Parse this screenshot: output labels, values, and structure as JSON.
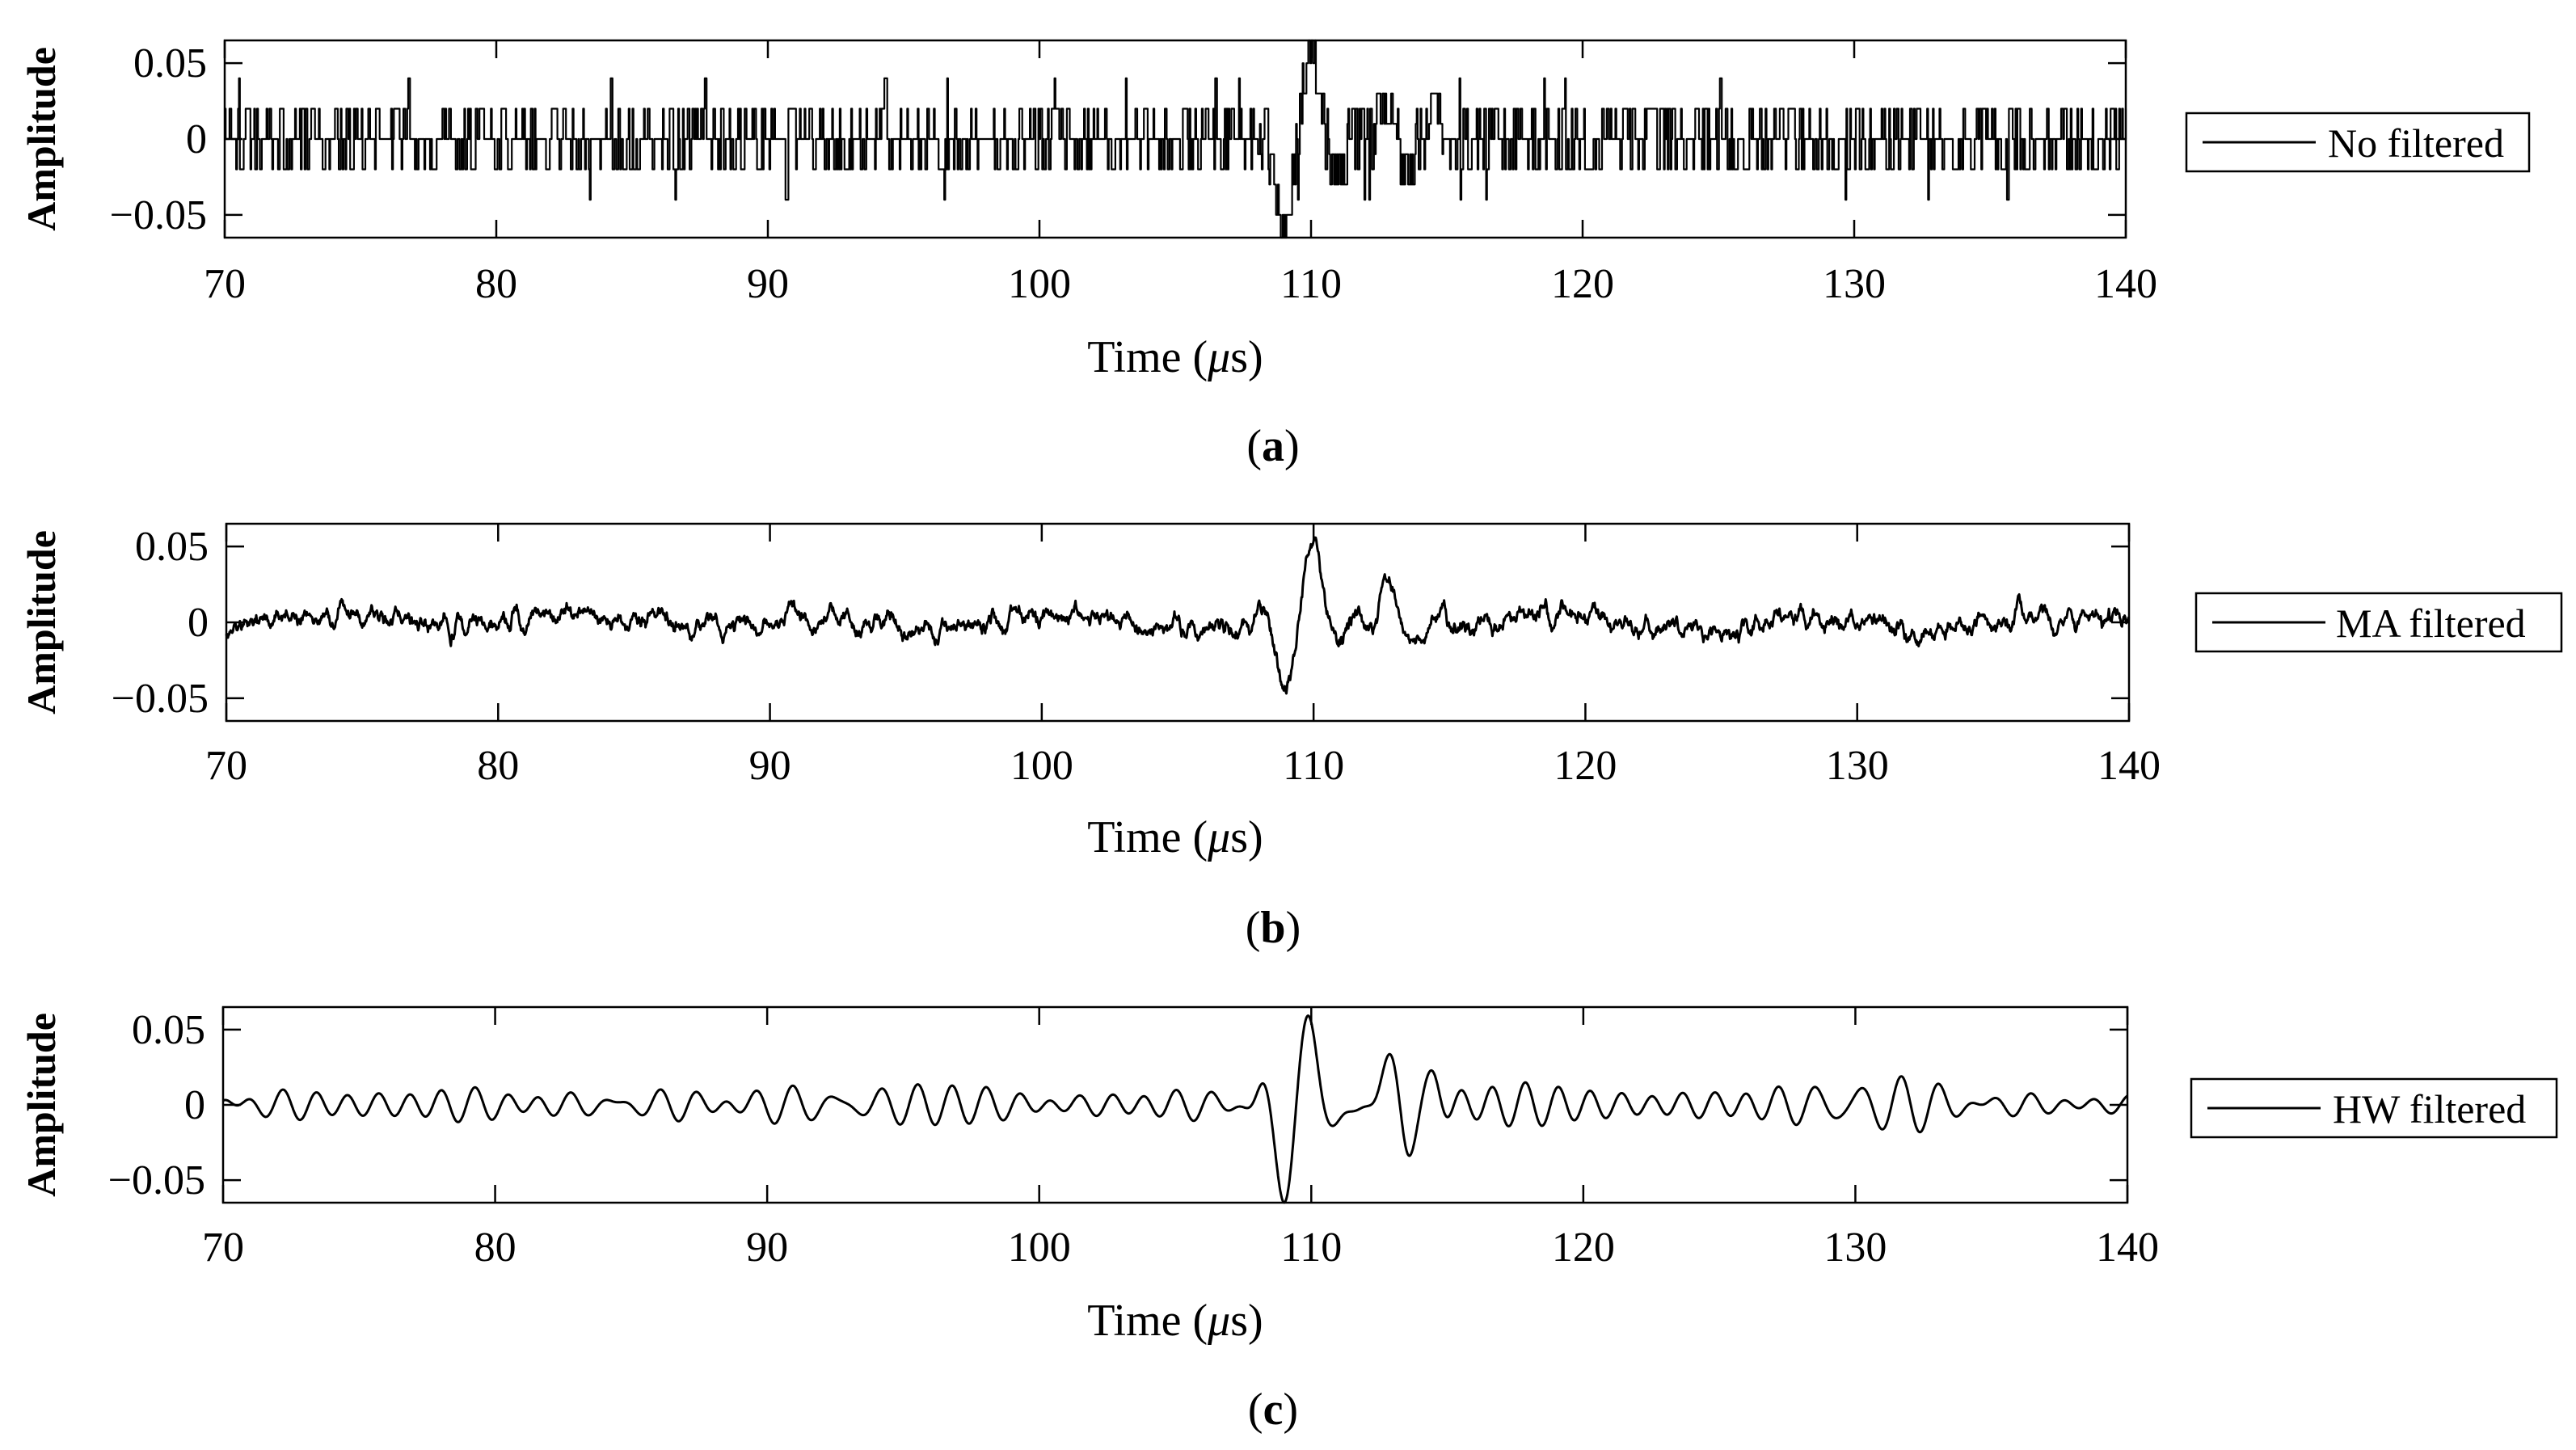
{
  "figure": {
    "panels": [
      {
        "id": "a",
        "caption_letter": "a",
        "legend": "No filtered",
        "kind": "quantized"
      },
      {
        "id": "b",
        "caption_letter": "b",
        "legend": "MA filtered",
        "kind": "moving-average"
      },
      {
        "id": "c",
        "caption_letter": "c",
        "legend": "HW filtered",
        "kind": "smooth"
      }
    ]
  },
  "chart_data": [
    {
      "type": "line",
      "title": "",
      "xlabel": "Time (μs)",
      "ylabel": "Amplitude",
      "xlim": [
        70,
        140
      ],
      "ylim": [
        -0.065,
        0.065
      ],
      "xticks": [
        70,
        80,
        90,
        100,
        110,
        120,
        130,
        140
      ],
      "yticks": [
        -0.05,
        0,
        0.05
      ],
      "ytick_labels": [
        "−0.05",
        "0",
        "0.05"
      ],
      "grid": false,
      "legend_position": "right",
      "caption": "(a)",
      "series": [
        {
          "name": "No filtered",
          "color": "#000000",
          "description_points": [
            {
              "x": 70.0,
              "y": 0.0
            },
            {
              "x": 72.0,
              "y": 0.04
            },
            {
              "x": 77.8,
              "y": -0.04
            },
            {
              "x": 81.3,
              "y": 0.04
            },
            {
              "x": 92.5,
              "y": -0.04
            },
            {
              "x": 96.3,
              "y": 0.04
            },
            {
              "x": 103.0,
              "y": 0.04
            },
            {
              "x": 108.8,
              "y": -0.06
            },
            {
              "x": 110.0,
              "y": 0.06
            },
            {
              "x": 111.2,
              "y": -0.04
            },
            {
              "x": 113.0,
              "y": 0.04
            },
            {
              "x": 128.5,
              "y": 0.04
            },
            {
              "x": 137.8,
              "y": -0.04
            },
            {
              "x": 140.0,
              "y": 0.0
            }
          ]
        }
      ]
    },
    {
      "type": "line",
      "title": "",
      "xlabel": "Time (μs)",
      "ylabel": "Amplitude",
      "xlim": [
        70,
        140
      ],
      "ylim": [
        -0.065,
        0.065
      ],
      "xticks": [
        70,
        80,
        90,
        100,
        110,
        120,
        130,
        140
      ],
      "yticks": [
        -0.05,
        0,
        0.05
      ],
      "ytick_labels": [
        "−0.05",
        "0",
        "0.05"
      ],
      "grid": false,
      "legend_position": "right",
      "caption": "(b)",
      "series": [
        {
          "name": "MA filtered",
          "color": "#000000",
          "description_points": [
            {
              "x": 70.0,
              "y": -0.005
            },
            {
              "x": 71.0,
              "y": 0.012
            },
            {
              "x": 77.8,
              "y": -0.02
            },
            {
              "x": 81.5,
              "y": 0.02
            },
            {
              "x": 105.0,
              "y": 0.005
            },
            {
              "x": 109.0,
              "y": -0.052
            },
            {
              "x": 110.0,
              "y": 0.045
            },
            {
              "x": 111.0,
              "y": -0.028
            },
            {
              "x": 112.8,
              "y": 0.027
            },
            {
              "x": 113.5,
              "y": -0.022
            },
            {
              "x": 128.5,
              "y": 0.018
            },
            {
              "x": 137.8,
              "y": -0.022
            },
            {
              "x": 140.0,
              "y": 0.008
            }
          ]
        }
      ]
    },
    {
      "type": "line",
      "title": "",
      "xlabel": "Time (μs)",
      "ylabel": "Amplitude",
      "xlim": [
        70,
        140
      ],
      "ylim": [
        -0.065,
        0.065
      ],
      "xticks": [
        70,
        80,
        90,
        100,
        110,
        120,
        130,
        140
      ],
      "yticks": [
        -0.05,
        0,
        0.05
      ],
      "ytick_labels": [
        "−0.05",
        "0",
        "0.05"
      ],
      "grid": false,
      "legend_position": "right",
      "caption": "(c)",
      "series": [
        {
          "name": "HW filtered",
          "color": "#000000",
          "description_points": [
            {
              "x": 70.0,
              "y": 0.0
            },
            {
              "x": 79.5,
              "y": 0.01
            },
            {
              "x": 81.5,
              "y": 0.012
            },
            {
              "x": 108.2,
              "y": 0.015
            },
            {
              "x": 109.0,
              "y": -0.045
            },
            {
              "x": 110.0,
              "y": 0.055
            },
            {
              "x": 110.8,
              "y": -0.022
            },
            {
              "x": 112.8,
              "y": 0.028
            },
            {
              "x": 113.5,
              "y": -0.022
            },
            {
              "x": 119.5,
              "y": 0.014
            },
            {
              "x": 127.5,
              "y": -0.014
            },
            {
              "x": 137.5,
              "y": -0.01
            },
            {
              "x": 140.0,
              "y": 0.005
            }
          ]
        }
      ]
    }
  ]
}
